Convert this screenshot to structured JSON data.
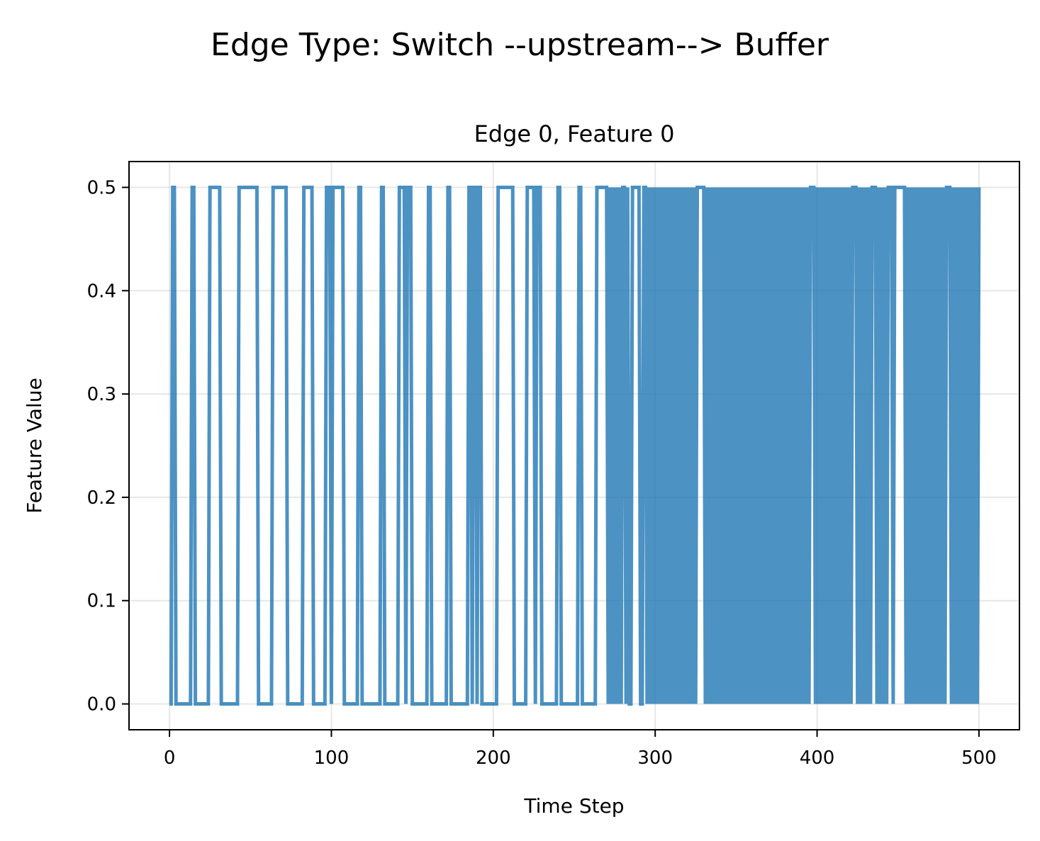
{
  "figure": {
    "suptitle": "Edge Type: Switch --upstream--> Buffer"
  },
  "chart_data": {
    "type": "line",
    "title": "Edge 0, Feature 0",
    "xlabel": "Time Step",
    "ylabel": "Feature Value",
    "xlim": [
      -25,
      525
    ],
    "ylim": [
      -0.025,
      0.525
    ],
    "xticks": [
      0,
      100,
      200,
      300,
      400,
      500
    ],
    "yticks": [
      0.0,
      0.1,
      0.2,
      0.3,
      0.4,
      0.5
    ],
    "xtick_labels": [
      "0",
      "100",
      "200",
      "300",
      "400",
      "500"
    ],
    "ytick_labels": [
      "0.0",
      "0.1",
      "0.2",
      "0.3",
      "0.4",
      "0.5"
    ],
    "grid": true,
    "legend": "none",
    "color": "#1f77b4",
    "series": [
      {
        "values_description": "binary signal 0.0 / 0.5, one value per time step 0-500",
        "high_intervals": [
          [
            2,
            3
          ],
          [
            14,
            15
          ],
          [
            25,
            31
          ],
          [
            43,
            54
          ],
          [
            64,
            72
          ],
          [
            83,
            88
          ],
          [
            97,
            98
          ],
          [
            99,
            99
          ],
          [
            101,
            107
          ],
          [
            117,
            118
          ],
          [
            131,
            132
          ],
          [
            142,
            145
          ],
          [
            147,
            149
          ],
          [
            160,
            161
          ],
          [
            172,
            173
          ],
          [
            185,
            186
          ],
          [
            188,
            189
          ],
          [
            191,
            192
          ],
          [
            203,
            212
          ],
          [
            221,
            225
          ],
          [
            227,
            229
          ],
          [
            240,
            241
          ],
          [
            253,
            254
          ],
          [
            264,
            270
          ],
          [
            272,
            272
          ],
          [
            274,
            274
          ],
          [
            276,
            276
          ],
          [
            278,
            278
          ],
          [
            280,
            281
          ],
          [
            283,
            283
          ],
          [
            286,
            290
          ],
          [
            293,
            294
          ],
          [
            296,
            296
          ],
          [
            298,
            298
          ],
          [
            300,
            300
          ],
          [
            302,
            302
          ],
          [
            304,
            304
          ],
          [
            306,
            306
          ],
          [
            308,
            308
          ],
          [
            310,
            310
          ],
          [
            312,
            312
          ],
          [
            314,
            314
          ],
          [
            316,
            316
          ],
          [
            318,
            318
          ],
          [
            320,
            320
          ],
          [
            322,
            322
          ],
          [
            324,
            324
          ],
          [
            326,
            330
          ],
          [
            332,
            332
          ],
          [
            334,
            334
          ],
          [
            336,
            336
          ],
          [
            338,
            338
          ],
          [
            340,
            340
          ],
          [
            342,
            342
          ],
          [
            344,
            344
          ],
          [
            346,
            346
          ],
          [
            348,
            348
          ],
          [
            350,
            350
          ],
          [
            352,
            352
          ],
          [
            354,
            354
          ],
          [
            356,
            356
          ],
          [
            358,
            358
          ],
          [
            360,
            360
          ],
          [
            362,
            362
          ],
          [
            364,
            364
          ],
          [
            366,
            366
          ],
          [
            368,
            368
          ],
          [
            370,
            370
          ],
          [
            372,
            372
          ],
          [
            374,
            374
          ],
          [
            376,
            376
          ],
          [
            378,
            378
          ],
          [
            380,
            380
          ],
          [
            382,
            382
          ],
          [
            384,
            384
          ],
          [
            386,
            386
          ],
          [
            388,
            388
          ],
          [
            390,
            390
          ],
          [
            392,
            392
          ],
          [
            394,
            394
          ],
          [
            396,
            398
          ],
          [
            400,
            400
          ],
          [
            402,
            402
          ],
          [
            404,
            404
          ],
          [
            406,
            406
          ],
          [
            408,
            408
          ],
          [
            410,
            410
          ],
          [
            412,
            412
          ],
          [
            414,
            414
          ],
          [
            416,
            416
          ],
          [
            418,
            418
          ],
          [
            420,
            420
          ],
          [
            422,
            424
          ],
          [
            426,
            426
          ],
          [
            428,
            428
          ],
          [
            430,
            430
          ],
          [
            432,
            432
          ],
          [
            434,
            436
          ],
          [
            438,
            438
          ],
          [
            440,
            440
          ],
          [
            442,
            442
          ],
          [
            444,
            446
          ],
          [
            448,
            454
          ],
          [
            456,
            456
          ],
          [
            458,
            458
          ],
          [
            460,
            460
          ],
          [
            462,
            462
          ],
          [
            464,
            464
          ],
          [
            466,
            466
          ],
          [
            468,
            468
          ],
          [
            470,
            470
          ],
          [
            472,
            472
          ],
          [
            474,
            474
          ],
          [
            476,
            476
          ],
          [
            478,
            478
          ],
          [
            480,
            482
          ],
          [
            484,
            484
          ],
          [
            486,
            486
          ],
          [
            488,
            488
          ],
          [
            490,
            490
          ],
          [
            492,
            492
          ],
          [
            494,
            494
          ],
          [
            496,
            496
          ],
          [
            498,
            498
          ],
          [
            500,
            500
          ]
        ],
        "low_value": 0.0,
        "high_value": 0.5,
        "x_range": [
          0,
          500
        ]
      }
    ]
  }
}
